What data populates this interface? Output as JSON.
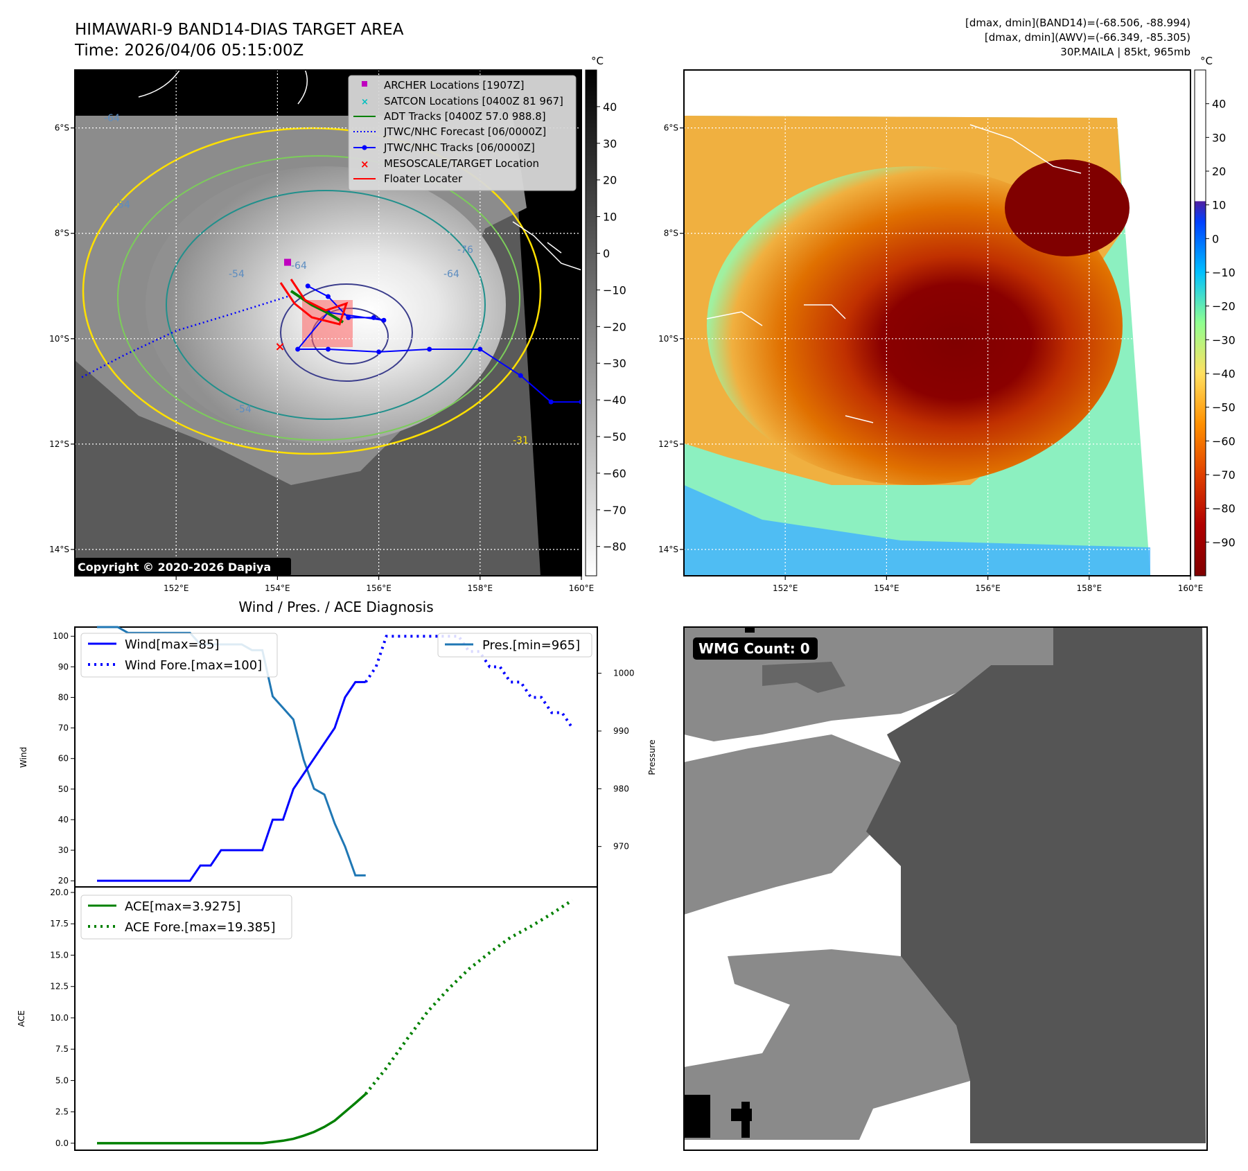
{
  "header": {
    "title": "HIMAWARI-9 BAND14-DIAS TARGET AREA",
    "time": "Time: 2026/04/06 05:15:00Z",
    "info_line1": "[dmax, dmin](BAND14)=(-68.506, -88.994)",
    "info_line2": "[dmax, dmin](AWV)=(-66.349, -85.305)",
    "info_line3": "30P.MAILA | 85kt, 965mb"
  },
  "colors": {
    "wind": "#0000ff",
    "pressure": "#1f77b4",
    "ace": "#008000",
    "archer": "#bf00bf",
    "satcon": "#00bfbf",
    "adt": "#008000",
    "jtwc": "#0000ff",
    "target": "#ff0000",
    "floater": "#ff0000"
  },
  "maps": {
    "lon_ticks": [
      "152°E",
      "154°E",
      "156°E",
      "158°E",
      "160°E"
    ],
    "lat_ticks": [
      "6°S",
      "8°S",
      "10°S",
      "12°S",
      "14°S"
    ],
    "copyright": "Copyright © 2020-2026 Dapiya",
    "colorbar_unit": "°C",
    "ir_colorbar_ticks": [
      "40",
      "30",
      "20",
      "10",
      "0",
      "−10",
      "−20",
      "−30",
      "−40",
      "−50",
      "−60",
      "−70",
      "−80"
    ],
    "awv_colorbar_ticks": [
      "40",
      "30",
      "20",
      "10",
      "0",
      "−10",
      "−20",
      "−30",
      "−40",
      "−50",
      "−60",
      "−70",
      "−80",
      "−90"
    ],
    "contour_labels": [
      "-64",
      "-54",
      "-64",
      "-76",
      "-64",
      "-54",
      "-31",
      "-54"
    ],
    "legend": [
      {
        "label": "ARCHER Locations [1907Z]",
        "marker": "square",
        "color": "#bf00bf"
      },
      {
        "label": "SATCON Locations [0400Z 81 967]",
        "marker": "x",
        "color": "#00bfbf"
      },
      {
        "label": "ADT Tracks [0400Z 57.0 988.8]",
        "marker": "line",
        "color": "#008000"
      },
      {
        "label": "JTWC/NHC Forecast [06/0000Z]",
        "marker": "dotted",
        "color": "#0000ff"
      },
      {
        "label": "JTWC/NHC Tracks [06/0000Z]",
        "marker": "line-dot",
        "color": "#0000ff"
      },
      {
        "label": "MESOSCALE/TARGET Location",
        "marker": "x",
        "color": "#ff0000"
      },
      {
        "label": "Floater Locater",
        "marker": "line",
        "color": "#ff0000"
      }
    ],
    "track_lonlat": [
      [
        160.0,
        -11.2
      ],
      [
        159.4,
        -11.2
      ],
      [
        158.8,
        -10.7
      ],
      [
        158.0,
        -10.2
      ],
      [
        157.0,
        -10.2
      ],
      [
        156.0,
        -10.25
      ],
      [
        155.0,
        -10.2
      ],
      [
        154.4,
        -10.2
      ],
      [
        155.0,
        -9.5
      ],
      [
        156.1,
        -9.65
      ],
      [
        155.9,
        -9.6
      ],
      [
        155.4,
        -9.6
      ],
      [
        155.0,
        -9.2
      ],
      [
        154.6,
        -9.0
      ]
    ],
    "forecast_lonlat": [
      [
        154.2,
        -9.2
      ],
      [
        153.2,
        -9.5
      ],
      [
        152.0,
        -9.85
      ],
      [
        151.0,
        -10.3
      ],
      [
        150.1,
        -10.75
      ]
    ],
    "archer_lonlat": [
      154.2,
      -8.55
    ],
    "target_lonlat": [
      154.05,
      -10.15
    ],
    "wmg_count": "WMG Count: 0"
  },
  "chart_title": "Wind / Pres. / ACE Diagnosis",
  "chart_data": [
    {
      "type": "line",
      "title": "Wind / Pres. / ACE Diagnosis",
      "ylabel": "Wind",
      "y2label": "Pressure",
      "ylim": [
        18,
        103
      ],
      "y2lim": [
        963,
        1008
      ],
      "yticks": [
        "20",
        "30",
        "40",
        "50",
        "60",
        "70",
        "80",
        "90",
        "100"
      ],
      "y2ticks": [
        "970",
        "980",
        "990",
        "1000"
      ],
      "x": [
        0,
        1,
        2,
        3,
        4,
        5,
        6,
        7,
        8,
        9,
        10,
        11,
        12,
        13,
        14,
        15,
        16,
        17,
        18,
        19,
        20,
        21,
        22,
        23,
        24,
        25,
        26,
        27,
        28,
        29,
        30,
        31,
        32,
        33,
        34,
        35,
        36,
        37,
        38,
        39,
        40,
        41,
        42,
        43,
        44,
        45,
        46
      ],
      "series": [
        {
          "name": "Wind[max=85]",
          "style": "solid",
          "x": [
            0,
            1,
            2,
            3,
            4,
            5,
            6,
            7,
            8,
            9,
            10,
            11,
            12,
            13,
            14,
            15,
            16,
            17,
            18,
            19,
            20,
            21,
            22,
            23,
            24,
            25,
            26
          ],
          "values": [
            20,
            20,
            20,
            20,
            20,
            20,
            20,
            20,
            20,
            20,
            25,
            25,
            30,
            30,
            30,
            30,
            30,
            40,
            40,
            50,
            55,
            60,
            65,
            70,
            80,
            85,
            85
          ]
        },
        {
          "name": "Wind Fore.[max=100]",
          "style": "dotted",
          "x": [
            26,
            27,
            28,
            29,
            30,
            31,
            32,
            33,
            34,
            35,
            36,
            37,
            38,
            39,
            40,
            41,
            42,
            43,
            44,
            45,
            46
          ],
          "values": [
            85,
            90,
            100,
            100,
            100,
            100,
            100,
            100,
            100,
            100,
            95,
            95,
            90,
            90,
            85,
            85,
            80,
            80,
            75,
            75,
            70
          ]
        },
        {
          "name": "Pres.[min=965]",
          "style": "solid",
          "axis": "right",
          "x": [
            0,
            1,
            2,
            3,
            4,
            5,
            6,
            7,
            8,
            9,
            10,
            11,
            12,
            13,
            14,
            15,
            16,
            17,
            18,
            19,
            20,
            21,
            22,
            23,
            24,
            25,
            26
          ],
          "values": [
            1008,
            1008,
            1008,
            1007,
            1007,
            1007,
            1007,
            1007,
            1007,
            1007,
            1005,
            1005,
            1005,
            1005,
            1005,
            1004,
            1004,
            996,
            994,
            992,
            985,
            980,
            979,
            974,
            970,
            965,
            965
          ]
        }
      ]
    },
    {
      "type": "line",
      "ylabel": "ACE",
      "ylim": [
        -1.0,
        20.0
      ],
      "yticks": [
        "0.0",
        "2.5",
        "5.0",
        "7.5",
        "10.0",
        "12.5",
        "15.0",
        "17.5",
        "20.0"
      ],
      "series": [
        {
          "name": "ACE[max=3.9275]",
          "style": "solid",
          "x": [
            0,
            2,
            4,
            6,
            8,
            10,
            12,
            14,
            16,
            17,
            18,
            19,
            20,
            21,
            22,
            23,
            24,
            25,
            26
          ],
          "values": [
            0,
            0,
            0,
            0,
            0,
            0,
            0,
            0,
            0,
            0.1,
            0.2,
            0.35,
            0.6,
            0.9,
            1.3,
            1.8,
            2.5,
            3.2,
            3.9275
          ]
        },
        {
          "name": "ACE Fore.[max=19.385]",
          "style": "dotted",
          "x": [
            26,
            28,
            30,
            32,
            34,
            36,
            38,
            40,
            42,
            44,
            46
          ],
          "values": [
            3.9275,
            6.0,
            8.3,
            10.5,
            12.3,
            13.9,
            15.2,
            16.4,
            17.3,
            18.3,
            19.385
          ]
        }
      ]
    }
  ]
}
